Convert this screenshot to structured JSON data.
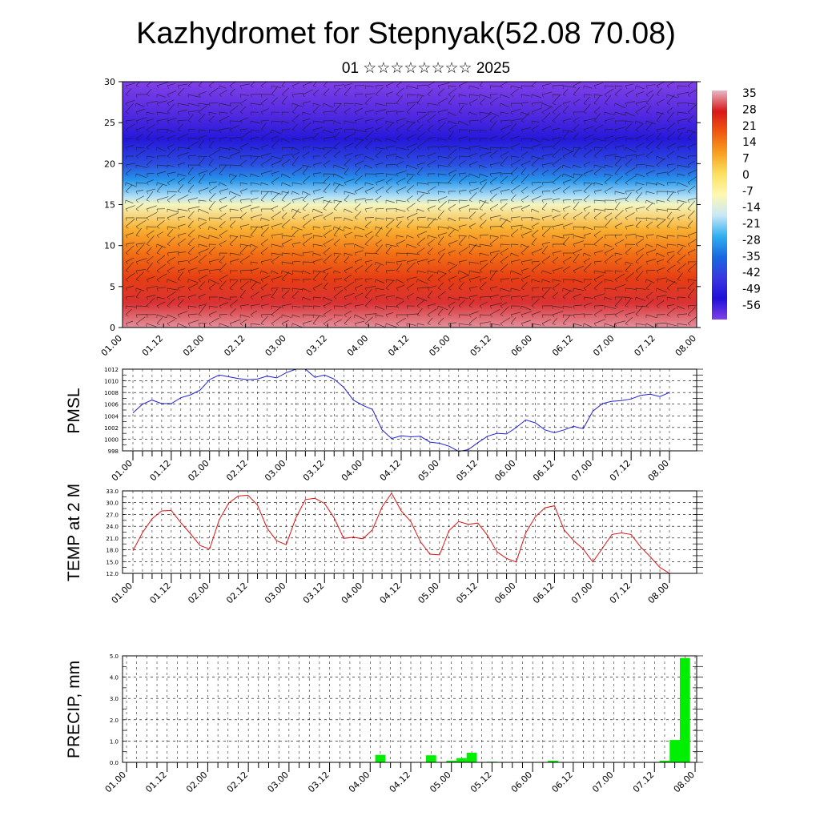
{
  "page": {
    "title": "Kazhydromet for Stepnyak(52.08 70.08)",
    "subtitle": "01 ☆☆☆☆☆☆☆☆ 2025"
  },
  "colors": {
    "pmsl_line": "#1f1fd6",
    "temp_line": "#e01010",
    "precip_bar": "#00ee00",
    "colorbar": [
      "#e8b8c8",
      "#d81818",
      "#f05a10",
      "#f8a020",
      "#fce060",
      "#fff8b0",
      "#c8e8f8",
      "#30b0f0",
      "#1868e0",
      "#3838e0",
      "#2010d8",
      "#8040e8"
    ]
  },
  "time_ticks": [
    "01.00",
    "01.12",
    "02.00",
    "02.12",
    "03.00",
    "03.12",
    "04.00",
    "04.12",
    "05.00",
    "05.12",
    "06.00",
    "06.12",
    "07.00",
    "07.12",
    "08.00"
  ],
  "chart_data": [
    {
      "type": "heatmap",
      "title": "",
      "y_ticks": [
        "0",
        "5",
        "10",
        "15",
        "20",
        "25",
        "30"
      ],
      "ylim": [
        0,
        30
      ],
      "colorbar_labels": [
        "35",
        "28",
        "21",
        "14",
        "7",
        "0",
        "-7",
        "-14",
        "-21",
        "-28",
        "-35",
        "-42",
        "-49",
        "-56"
      ],
      "layers": [
        {
          "level": 0,
          "temp": 33
        },
        {
          "level": 3,
          "temp": 28
        },
        {
          "level": 6,
          "temp": 22
        },
        {
          "level": 9,
          "temp": 16
        },
        {
          "level": 12,
          "temp": 8
        },
        {
          "level": 15,
          "temp": -8
        },
        {
          "level": 16,
          "temp": -16
        },
        {
          "level": 18,
          "temp": -26
        },
        {
          "level": 20,
          "temp": -36
        },
        {
          "level": 23,
          "temp": -46
        },
        {
          "level": 26,
          "temp": -52
        },
        {
          "level": 30,
          "temp": -56
        }
      ]
    },
    {
      "type": "line",
      "ylabel": "PMSL",
      "y_ticks": [
        "998",
        "1000",
        "1002",
        "1004",
        "1006",
        "1008",
        "1010",
        "1012"
      ],
      "ylim": [
        998,
        1012
      ],
      "x_step_hours": 3,
      "series": [
        {
          "values": [
            1004.5,
            1006,
            1006.7,
            1006.1,
            1006.1,
            1007.1,
            1007.6,
            1008.4,
            1010.2,
            1011,
            1010.7,
            1010.4,
            1010.2,
            1010.3,
            1010.8,
            1010.5,
            1011.4,
            1012,
            1012,
            1010.6,
            1011,
            1010.3,
            1008.9,
            1006.7,
            1005.8,
            1005.1,
            1001.6,
            1000.1,
            1000.6,
            1000.4,
            1000.5,
            999.5,
            999.3,
            998.8,
            997.9,
            998.2,
            999.4,
            1000.5,
            1001,
            1000.9,
            1002,
            1003.3,
            1002.8,
            1001.6,
            1001.1,
            1001.6,
            1002.2,
            1001.8,
            1004.8,
            1006.1,
            1006.5,
            1006.6,
            1006.9,
            1007.5,
            1007.7,
            1007.3,
            1008
          ]
        }
      ]
    },
    {
      "type": "line",
      "ylabel": "TEMP at 2 M",
      "y_ticks": [
        "12.0",
        "15.0",
        "18.0",
        "21.0",
        "24.0",
        "27.0",
        "30.0",
        "33.0"
      ],
      "ylim": [
        12,
        33
      ],
      "x_step_hours": 3,
      "series": [
        {
          "values": [
            17.8,
            22.4,
            25.9,
            27.9,
            28,
            24.9,
            22.1,
            19.1,
            18.2,
            25.6,
            29.9,
            31.7,
            31.9,
            29.4,
            23.5,
            20.3,
            19.3,
            26.1,
            30.8,
            31.1,
            29.8,
            26.1,
            20.9,
            21.2,
            20.8,
            23.1,
            28.9,
            32.4,
            27.9,
            25.2,
            20.1,
            16.9,
            16.7,
            22.9,
            25.2,
            24.5,
            24.8,
            21.7,
            17.5,
            15.8,
            14.9,
            22.3,
            26.4,
            28.7,
            29.2,
            23.1,
            20.3,
            18.2,
            14.9,
            18.4,
            21.9,
            22.3,
            21.9,
            18.7,
            16.2,
            13.5,
            12
          ]
        }
      ]
    },
    {
      "type": "bar",
      "ylabel": "PRECIP, mm",
      "y_ticks": [
        "0.0",
        "1.0",
        "2.0",
        "3.0",
        "4.0",
        "5.0"
      ],
      "ylim": [
        0,
        5
      ],
      "bars": [
        {
          "t_hours": 75,
          "value": 0.35
        },
        {
          "t_hours": 90,
          "value": 0.33
        },
        {
          "t_hours": 96,
          "value": 0.08
        },
        {
          "t_hours": 99,
          "value": 0.2
        },
        {
          "t_hours": 102,
          "value": 0.45
        },
        {
          "t_hours": 108,
          "value": 0.03
        },
        {
          "t_hours": 126,
          "value": 0.08
        },
        {
          "t_hours": 159,
          "value": 0.08
        },
        {
          "t_hours": 162,
          "value": 1.05
        },
        {
          "t_hours": 165,
          "value": 4.9
        }
      ]
    }
  ]
}
